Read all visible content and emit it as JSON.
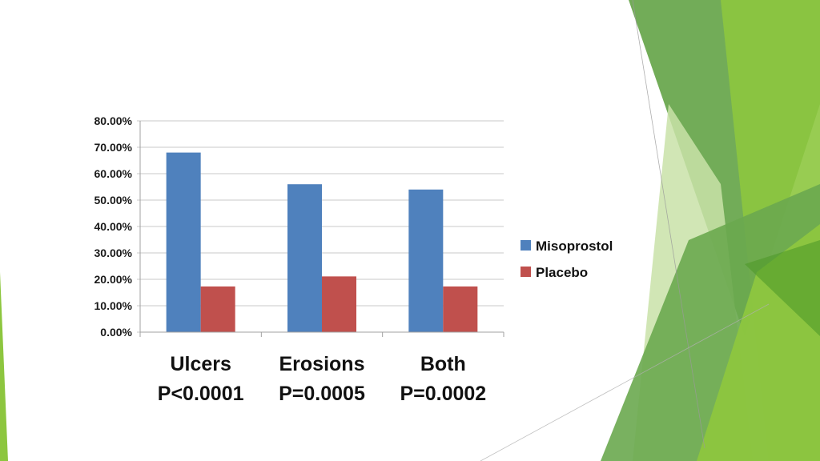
{
  "theme": {
    "series_colors": [
      "#4f81bd",
      "#c0504d"
    ],
    "accent_greens": [
      "#8dc63f",
      "#6aa84f",
      "#4f9a2a",
      "#c9e2a8"
    ]
  },
  "chart_data": {
    "type": "bar",
    "categories": [
      "Ulcers",
      "Erosions",
      "Both"
    ],
    "category_sublabels": [
      "P<0.0001",
      "P=0.0005",
      "P=0.0002"
    ],
    "series": [
      {
        "name": "Misoprostol",
        "values": [
          68,
          56,
          54
        ],
        "color": "#4f81bd"
      },
      {
        "name": "Placebo",
        "values": [
          17.3,
          21.1,
          17.3
        ],
        "color": "#c0504d"
      }
    ],
    "yticks": [
      "0.00%",
      "10.00%",
      "20.00%",
      "30.00%",
      "40.00%",
      "50.00%",
      "60.00%",
      "70.00%",
      "80.00%"
    ],
    "ylim": [
      0,
      80
    ],
    "y_unit": "percent",
    "grid": true,
    "legend_position": "right"
  }
}
